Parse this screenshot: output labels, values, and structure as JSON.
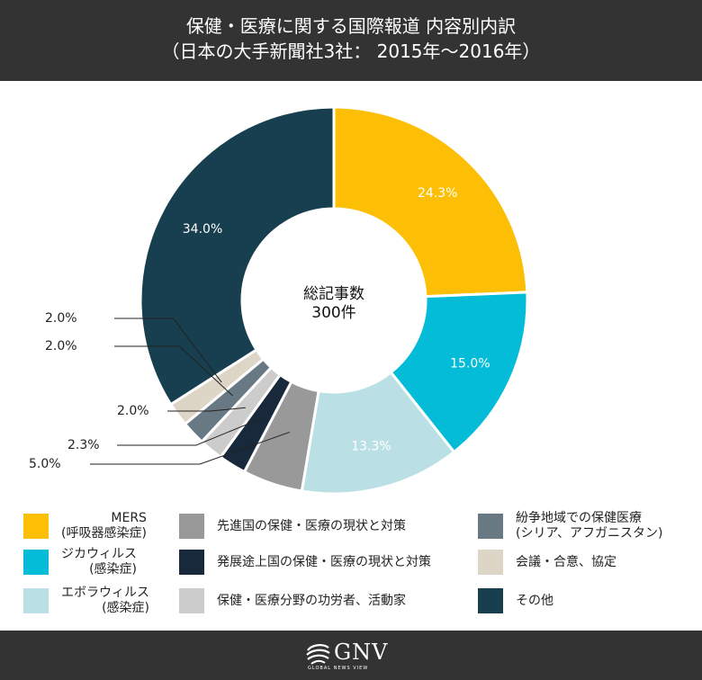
{
  "header": {
    "title_line1": "保健・医療に関する国際報道 内容別内訳",
    "title_line2": "（日本の大手新聞社3社： 2015年～2016年）"
  },
  "chart_data": {
    "type": "pie",
    "donut": true,
    "center_label_line1": "総記事数",
    "center_label_line2": "300件",
    "slices": [
      {
        "label": "MERS\n(呼吸器感染症)",
        "value": 24.3,
        "value_label": "24.3%",
        "color": "#fcbf06"
      },
      {
        "label": "ジカウィルス\n(感染症)",
        "value": 15.0,
        "value_label": "15.0%",
        "color": "#04bcd8"
      },
      {
        "label": "エボラウィルス\n(感染症)",
        "value": 13.3,
        "value_label": "13.3%",
        "color": "#bae0e6"
      },
      {
        "label": "先進国の保健・医療の現状と対策",
        "value": 5.0,
        "value_label": "5.0%",
        "color": "#999999"
      },
      {
        "label": "発展途上国の保健・医療の現状と対策",
        "value": 2.3,
        "value_label": "2.3%",
        "color": "#17293a"
      },
      {
        "label": "保健・医療分野の功労者、活動家",
        "value": 2.0,
        "value_label": "2.0%",
        "color": "#cccccc"
      },
      {
        "label": "紛争地域での保健医療\n(シリア、アフガニスタン)",
        "value": 2.0,
        "value_label": "2.0%",
        "color": "#687984"
      },
      {
        "label": "会議・合意、協定",
        "value": 2.0,
        "value_label": "2.0%",
        "color": "#ddd5c6"
      },
      {
        "label": "その他",
        "value": 34.0,
        "value_label": "34.0%",
        "color": "#183f4f"
      }
    ]
  },
  "footer": {
    "logo_text": "GNV",
    "logo_sub": "GLOBAL NEWS VIEW"
  }
}
